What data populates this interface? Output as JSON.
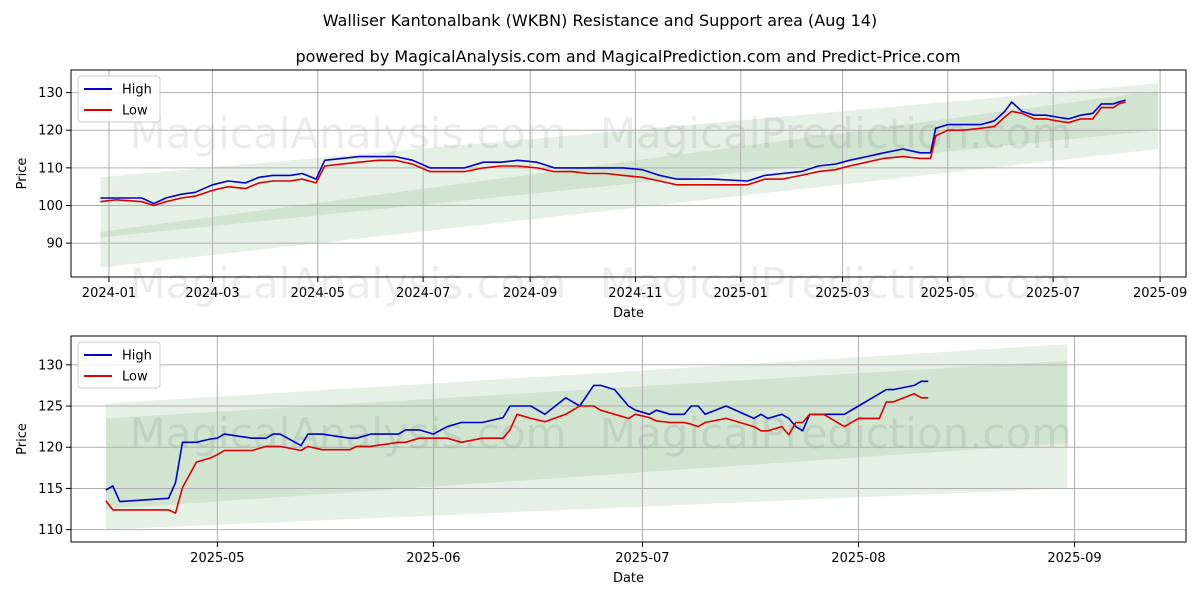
{
  "title": "Walliser Kantonalbank (WKBN) Resistance and Support area (Aug 14)",
  "subtitle": "powered by MagicalAnalysis.com and MagicalPrediction.com and Predict-Price.com",
  "watermarks": [
    "MagicalAnalysis.com",
    "MagicalPrediction.com"
  ],
  "colors": {
    "high": "#0000cc",
    "low": "#dd0000",
    "band": "#2e8b2e",
    "grid": "#b0b0b0"
  },
  "chart_data": [
    {
      "type": "line",
      "xlabel": "Date",
      "ylabel": "Price",
      "xlim": [
        "2023-12-10",
        "2025-09-16"
      ],
      "ylim": [
        81,
        136
      ],
      "x_ticks": [
        "2024-01",
        "2024-03",
        "2024-05",
        "2024-07",
        "2024-09",
        "2024-11",
        "2025-01",
        "2025-03",
        "2025-05",
        "2025-07",
        "2025-09"
      ],
      "y_ticks": [
        90,
        100,
        110,
        120,
        130
      ],
      "grid": true,
      "legend": "top-left",
      "series": [
        {
          "name": "High",
          "color": "#0000cc",
          "x": [
            "2023-12-27",
            "2024-01-05",
            "2024-01-20",
            "2024-01-27",
            "2024-02-03",
            "2024-02-12",
            "2024-02-20",
            "2024-03-01",
            "2024-03-10",
            "2024-03-20",
            "2024-03-28",
            "2024-04-05",
            "2024-04-15",
            "2024-04-22",
            "2024-04-30",
            "2024-05-05",
            "2024-05-15",
            "2024-05-25",
            "2024-06-05",
            "2024-06-15",
            "2024-06-25",
            "2024-07-05",
            "2024-07-15",
            "2024-07-25",
            "2024-08-05",
            "2024-08-15",
            "2024-08-25",
            "2024-09-05",
            "2024-09-15",
            "2024-09-25",
            "2024-10-05",
            "2024-10-15",
            "2024-10-25",
            "2024-11-05",
            "2024-11-15",
            "2024-11-25",
            "2024-12-05",
            "2024-12-15",
            "2025-01-05",
            "2025-01-15",
            "2025-01-25",
            "2025-02-05",
            "2025-02-15",
            "2025-02-25",
            "2025-03-05",
            "2025-03-15",
            "2025-03-25",
            "2025-04-05",
            "2025-04-15",
            "2025-04-21",
            "2025-04-24",
            "2025-05-01",
            "2025-05-10",
            "2025-05-20",
            "2025-05-28",
            "2025-06-03",
            "2025-06-07",
            "2025-06-13",
            "2025-06-20",
            "2025-06-27",
            "2025-07-03",
            "2025-07-10",
            "2025-07-17",
            "2025-07-24",
            "2025-07-29",
            "2025-08-05",
            "2025-08-08",
            "2025-08-12"
          ],
          "values": [
            102,
            102,
            102,
            100.5,
            102,
            103,
            103.5,
            105.5,
            106.5,
            106,
            107.5,
            108,
            108,
            108.5,
            107,
            112,
            112.5,
            113,
            113,
            113,
            112,
            110,
            110,
            110,
            111.5,
            111.5,
            112,
            111.5,
            110,
            110,
            110,
            110,
            110,
            109.5,
            108,
            107,
            107,
            107,
            106.5,
            108,
            108.5,
            109,
            110.5,
            111,
            112,
            113,
            114,
            115,
            114,
            114,
            120.5,
            121.5,
            121.5,
            121.5,
            122.5,
            125,
            127.5,
            125,
            124,
            124,
            123.5,
            123,
            124,
            124.5,
            127,
            127,
            127.5,
            128
          ]
        },
        {
          "name": "Low",
          "color": "#dd0000",
          "x": [
            "2023-12-27",
            "2024-01-05",
            "2024-01-20",
            "2024-01-27",
            "2024-02-03",
            "2024-02-12",
            "2024-02-20",
            "2024-03-01",
            "2024-03-10",
            "2024-03-20",
            "2024-03-28",
            "2024-04-05",
            "2024-04-15",
            "2024-04-22",
            "2024-04-30",
            "2024-05-05",
            "2024-05-15",
            "2024-05-25",
            "2024-06-05",
            "2024-06-15",
            "2024-06-25",
            "2024-07-05",
            "2024-07-15",
            "2024-07-25",
            "2024-08-05",
            "2024-08-15",
            "2024-08-25",
            "2024-09-05",
            "2024-09-15",
            "2024-09-25",
            "2024-10-05",
            "2024-10-15",
            "2024-10-25",
            "2024-11-05",
            "2024-11-15",
            "2024-11-25",
            "2024-12-05",
            "2024-12-15",
            "2025-01-05",
            "2025-01-15",
            "2025-01-25",
            "2025-02-05",
            "2025-02-15",
            "2025-02-25",
            "2025-03-05",
            "2025-03-15",
            "2025-03-25",
            "2025-04-05",
            "2025-04-15",
            "2025-04-21",
            "2025-04-24",
            "2025-05-01",
            "2025-05-10",
            "2025-05-20",
            "2025-05-28",
            "2025-06-03",
            "2025-06-07",
            "2025-06-13",
            "2025-06-20",
            "2025-06-27",
            "2025-07-03",
            "2025-07-10",
            "2025-07-17",
            "2025-07-24",
            "2025-07-29",
            "2025-08-05",
            "2025-08-08",
            "2025-08-12"
          ],
          "values": [
            101,
            101.5,
            101,
            100,
            101,
            102,
            102.5,
            104,
            105,
            104.5,
            106,
            106.5,
            106.5,
            107,
            106,
            110.5,
            111,
            111.5,
            112,
            112,
            111,
            109,
            109,
            109,
            110,
            110.5,
            110.5,
            110,
            109,
            109,
            108.5,
            108.5,
            108,
            107.5,
            106.5,
            105.5,
            105.5,
            105.5,
            105.5,
            107,
            107,
            108,
            109,
            109.5,
            110.5,
            111.5,
            112.5,
            113,
            112.5,
            112.5,
            118.5,
            120,
            120,
            120.5,
            121,
            123.5,
            125,
            124.5,
            123,
            123,
            122.5,
            122,
            123,
            123,
            126,
            126,
            127,
            127.5
          ]
        }
      ],
      "bands": [
        {
          "x": [
            "2023-12-27",
            "2025-08-31"
          ],
          "upper": [
            107.5,
            132.5
          ],
          "lower": [
            83.5,
            115
          ]
        },
        {
          "x": [
            "2023-12-27",
            "2025-08-31"
          ],
          "upper": [
            93,
            130.5
          ],
          "lower": [
            91.5,
            120
          ]
        }
      ]
    },
    {
      "type": "line",
      "xlabel": "Date",
      "ylabel": "Price",
      "xlim": [
        "2025-04-10",
        "2025-09-17"
      ],
      "ylim": [
        108.5,
        133.5
      ],
      "x_ticks": [
        "2025-05",
        "2025-06",
        "2025-07",
        "2025-08",
        "2025-09"
      ],
      "y_ticks": [
        110,
        115,
        120,
        125,
        130
      ],
      "grid": true,
      "legend": "top-left",
      "series": [
        {
          "name": "High",
          "color": "#0000cc",
          "x": [
            "2025-04-15",
            "2025-04-16",
            "2025-04-17",
            "2025-04-24",
            "2025-04-25",
            "2025-04-26",
            "2025-04-28",
            "2025-04-30",
            "2025-05-01",
            "2025-05-02",
            "2025-05-06",
            "2025-05-08",
            "2025-05-09",
            "2025-05-10",
            "2025-05-13",
            "2025-05-14",
            "2025-05-16",
            "2025-05-20",
            "2025-05-21",
            "2025-05-23",
            "2025-05-27",
            "2025-05-28",
            "2025-05-30",
            "2025-06-01",
            "2025-06-03",
            "2025-06-05",
            "2025-06-08",
            "2025-06-11",
            "2025-06-12",
            "2025-06-13",
            "2025-06-15",
            "2025-06-17",
            "2025-06-20",
            "2025-06-22",
            "2025-06-24",
            "2025-06-25",
            "2025-06-27",
            "2025-06-29",
            "2025-06-30",
            "2025-07-02",
            "2025-07-03",
            "2025-07-05",
            "2025-07-07",
            "2025-07-08",
            "2025-07-09",
            "2025-07-10",
            "2025-07-13",
            "2025-07-17",
            "2025-07-18",
            "2025-07-19",
            "2025-07-21",
            "2025-07-22",
            "2025-07-23",
            "2025-07-24",
            "2025-07-25",
            "2025-07-27",
            "2025-07-28",
            "2025-07-30",
            "2025-08-01",
            "2025-08-04",
            "2025-08-05",
            "2025-08-06",
            "2025-08-09",
            "2025-08-10",
            "2025-08-11"
          ],
          "values": [
            114.8,
            115.3,
            113.4,
            113.8,
            115.7,
            120.6,
            120.6,
            121.0,
            121.1,
            121.6,
            121.1,
            121.1,
            121.6,
            121.6,
            120.2,
            121.6,
            121.6,
            121.1,
            121.1,
            121.6,
            121.6,
            122.1,
            122.1,
            121.6,
            122.5,
            123.0,
            123.0,
            123.6,
            125.0,
            125.0,
            125.0,
            124.0,
            126.0,
            125.0,
            127.5,
            127.5,
            127.0,
            125.0,
            124.5,
            124.0,
            124.5,
            124.0,
            124.0,
            125.0,
            125.0,
            124.0,
            125.0,
            123.5,
            124.0,
            123.5,
            124.0,
            123.5,
            122.5,
            122.0,
            124.0,
            124.0,
            124.0,
            124.0,
            125.0,
            126.5,
            127.0,
            127.0,
            127.5,
            128.0,
            128.0
          ]
        },
        {
          "name": "Low",
          "color": "#dd0000",
          "x": [
            "2025-04-15",
            "2025-04-16",
            "2025-04-17",
            "2025-04-24",
            "2025-04-25",
            "2025-04-26",
            "2025-04-28",
            "2025-04-30",
            "2025-05-01",
            "2025-05-02",
            "2025-05-06",
            "2025-05-08",
            "2025-05-09",
            "2025-05-10",
            "2025-05-13",
            "2025-05-14",
            "2025-05-16",
            "2025-05-20",
            "2025-05-21",
            "2025-05-23",
            "2025-05-27",
            "2025-05-28",
            "2025-05-30",
            "2025-06-01",
            "2025-06-03",
            "2025-06-05",
            "2025-06-08",
            "2025-06-11",
            "2025-06-12",
            "2025-06-13",
            "2025-06-15",
            "2025-06-17",
            "2025-06-20",
            "2025-06-22",
            "2025-06-24",
            "2025-06-25",
            "2025-06-27",
            "2025-06-29",
            "2025-06-30",
            "2025-07-02",
            "2025-07-03",
            "2025-07-05",
            "2025-07-07",
            "2025-07-08",
            "2025-07-09",
            "2025-07-10",
            "2025-07-13",
            "2025-07-17",
            "2025-07-18",
            "2025-07-19",
            "2025-07-21",
            "2025-07-22",
            "2025-07-23",
            "2025-07-24",
            "2025-07-25",
            "2025-07-27",
            "2025-07-28",
            "2025-07-30",
            "2025-08-01",
            "2025-08-04",
            "2025-08-05",
            "2025-08-06",
            "2025-08-09",
            "2025-08-10",
            "2025-08-11"
          ],
          "values": [
            113.5,
            112.4,
            112.4,
            112.4,
            112.0,
            115.1,
            118.2,
            118.7,
            119.1,
            119.6,
            119.6,
            120.1,
            120.1,
            120.1,
            119.6,
            120.1,
            119.7,
            119.7,
            120.1,
            120.1,
            120.6,
            120.6,
            121.1,
            121.1,
            121.1,
            120.6,
            121.1,
            121.1,
            122.1,
            124.0,
            123.5,
            123.1,
            124.0,
            125.0,
            125.0,
            124.5,
            124.0,
            123.5,
            124.0,
            123.6,
            123.2,
            123.0,
            123.0,
            122.8,
            122.5,
            123.0,
            123.5,
            122.5,
            122.0,
            122.0,
            122.5,
            121.5,
            123.0,
            123.0,
            124.0,
            124.0,
            123.5,
            122.5,
            123.5,
            123.5,
            125.5,
            125.5,
            126.5,
            126.0,
            126.0
          ]
        }
      ],
      "bands": [
        {
          "x": [
            "2025-04-15",
            "2025-08-31"
          ],
          "upper": [
            125.3,
            132.5
          ],
          "lower": [
            110,
            115
          ]
        },
        {
          "x": [
            "2025-04-15",
            "2025-08-31"
          ],
          "upper": [
            123.5,
            130.5
          ],
          "lower": [
            112.5,
            120.5
          ]
        }
      ]
    }
  ]
}
